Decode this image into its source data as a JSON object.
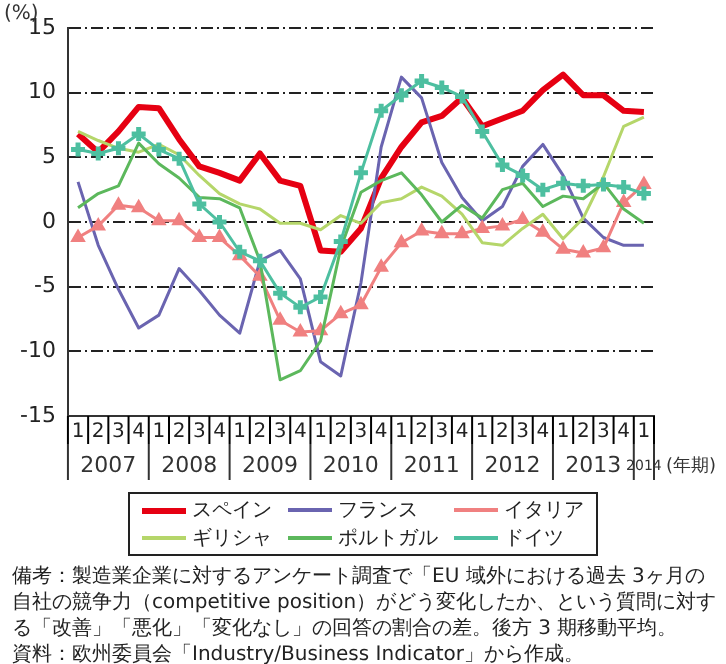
{
  "chart_data": {
    "type": "line",
    "ylabel": "(%)",
    "xlabel": "(年期)",
    "categories": [
      "1",
      "2",
      "3",
      "4",
      "1",
      "2",
      "3",
      "4",
      "1",
      "2",
      "3",
      "4",
      "1",
      "2",
      "3",
      "4",
      "1",
      "2",
      "3",
      "4",
      "1",
      "2",
      "3",
      "4",
      "1",
      "2",
      "3",
      "4",
      "1"
    ],
    "ylim": [
      -15,
      15
    ],
    "yticks": [
      -15,
      -10,
      -5,
      0,
      5,
      10,
      15
    ],
    "grid": "y",
    "legend": "bottom",
    "series": [
      {
        "name": "スペイン",
        "color": "#e60012",
        "marker": "none",
        "values": [
          6.8,
          5.4,
          7,
          8.9,
          8.8,
          6.4,
          4.3,
          3.8,
          3.2,
          5.3,
          3.2,
          2.8,
          -2.2,
          -2.3,
          -0.5,
          3.4,
          5.8,
          7.7,
          8.2,
          9.6,
          7.4,
          8,
          8.6,
          10.2,
          11.4,
          9.8,
          9.8,
          8.6,
          8.5
        ]
      },
      {
        "name": "フランス",
        "color": "#6a64b0",
        "marker": "none",
        "values": [
          3.1,
          -1.8,
          -5.2,
          -8.2,
          -7.2,
          -3.6,
          -5.3,
          -7.2,
          -8.6,
          -3,
          -2.2,
          -4.4,
          -10.8,
          -11.9,
          -4.7,
          5.8,
          11.2,
          9.6,
          4.6,
          1.9,
          0.1,
          1.2,
          4.3,
          6,
          3.6,
          0.3,
          -1.2,
          -1.8,
          -1.8
        ]
      },
      {
        "name": "イタリア",
        "color": "#f08080",
        "marker": "triangle",
        "values": [
          -1.2,
          -0.3,
          1.3,
          1.1,
          0.1,
          0.1,
          -1.2,
          -1.2,
          -2.6,
          -4.2,
          -7.6,
          -8.5,
          -8.4,
          -7.1,
          -6.4,
          -3.5,
          -1.6,
          -0.7,
          -0.9,
          -0.9,
          -0.5,
          -0.3,
          0.2,
          -0.8,
          -2.1,
          -2.4,
          -2,
          1.5,
          2.9
        ]
      },
      {
        "name": "ギリシャ",
        "color": "#b5d66a",
        "marker": "none",
        "values": [
          7,
          6.3,
          5.7,
          5.4,
          6,
          5.2,
          3.6,
          2.2,
          1.4,
          1,
          -0.1,
          -0.1,
          -0.6,
          0.5,
          -0.1,
          1.5,
          1.8,
          2.7,
          2,
          0.6,
          -1.6,
          -1.8,
          -0.5,
          0.6,
          -1.3,
          0.3,
          3.5,
          7.4,
          8.1
        ]
      },
      {
        "name": "ポルトガル",
        "color": "#5cb85c",
        "marker": "none",
        "values": [
          1.1,
          2.2,
          2.8,
          6.1,
          4.5,
          3.4,
          1.9,
          1.8,
          1.1,
          -3,
          -12.2,
          -11.5,
          -9.2,
          -2,
          2.3,
          3.2,
          3.8,
          2.1,
          0,
          1.3,
          0.3,
          2.5,
          3,
          1.2,
          2,
          1.8,
          3,
          1,
          -0.1
        ]
      },
      {
        "name": "ドイツ",
        "color": "#4dbfa0",
        "marker": "cross",
        "values": [
          5.6,
          5.3,
          5.7,
          6.8,
          5.6,
          4.9,
          1.4,
          0,
          -2.3,
          -3,
          -5.5,
          -6.6,
          -5.8,
          -1.5,
          3.8,
          8.6,
          9.8,
          10.9,
          10.4,
          9.7,
          7,
          4.4,
          3.6,
          2.5,
          3,
          2.8,
          2.9,
          2.7,
          2.2
        ]
      }
    ],
    "annotations": [
      "2007",
      "2008",
      "2009",
      "2010",
      "2011",
      "2012",
      "2013",
      "2014",
      "備考：製造業企業に対するアンケート調査で「EU 域外における過去 3ヶ月の自社の競争力（competitive position）がどう変化したか、という質問に対する「改善」「悪化」「変化なし」の回答の割合の差。後方 3 期移動平均。",
      "資料：欧州委員会「Industry/Business Indicator」から作成。"
    ]
  }
}
